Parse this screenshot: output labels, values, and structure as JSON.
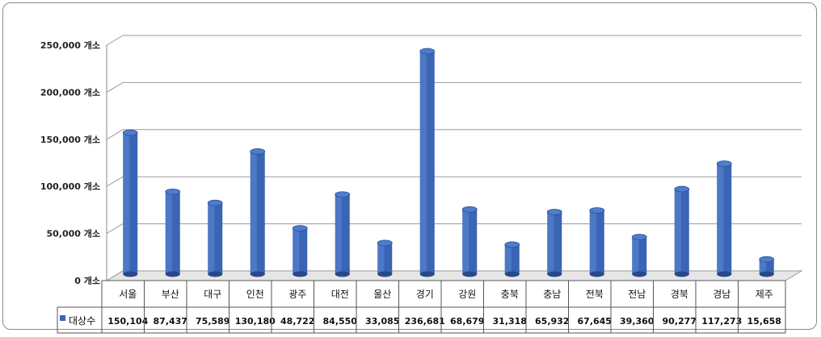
{
  "chart_data": {
    "type": "bar",
    "categories": [
      "서울",
      "부산",
      "대구",
      "인천",
      "광주",
      "대전",
      "울산",
      "경기",
      "강원",
      "충북",
      "충남",
      "전북",
      "전남",
      "경북",
      "경남",
      "제주"
    ],
    "series": [
      {
        "name": "대상수",
        "values": [
          150104,
          87437,
          75589,
          130180,
          48722,
          84550,
          33085,
          236681,
          68679,
          31318,
          65932,
          67645,
          39360,
          90277,
          117273,
          15658
        ],
        "display": [
          "150,104",
          "87,437",
          "75,589",
          "130,180",
          "48,722",
          "84,550",
          "33,085",
          "236,681",
          "68,679",
          "31,318",
          "65,932",
          "67,645",
          "39,360",
          "90,277",
          "117,273",
          "15,658"
        ],
        "color": "#3a64b4"
      }
    ],
    "y_ticks": [
      "0 개소",
      "50,000 개소",
      "100,000 개소",
      "150,000 개소",
      "200,000 개소",
      "250,000 개소"
    ],
    "y_tick_values": [
      0,
      50000,
      100000,
      150000,
      200000,
      250000
    ],
    "ylim": [
      0,
      250000
    ],
    "grid": true,
    "legend": "data-table",
    "title": "",
    "xlabel": "",
    "ylabel": ""
  }
}
